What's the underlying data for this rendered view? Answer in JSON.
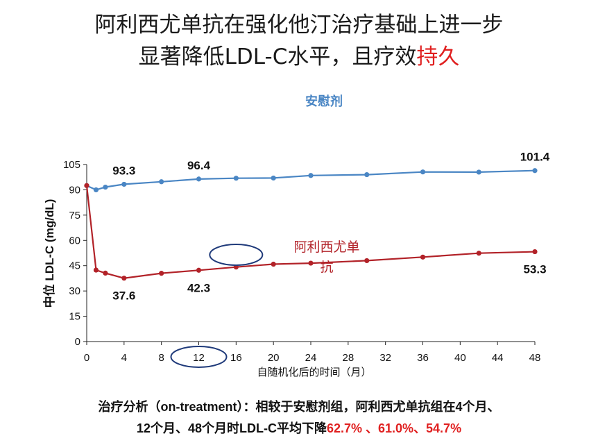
{
  "slide": {
    "title_line1": "阿利西尤单抗在强化他汀治疗基础上进一步",
    "title_line2_main": "显著降低LDL-C水平，且疗效",
    "title_line2_accent": "持久",
    "footer_line1": "治疗分析（on-treatment）：相较于安慰剂组，阿利西尤单抗组在4个月、",
    "footer_line2_main": "12个月、48个月时LDL-C平均下降",
    "footer_line2_values": "62.7% 、61.0%、54.7%"
  },
  "colors": {
    "placebo": "#4a86c4",
    "alirocumab": "#b22228",
    "accent_red": "#e02020",
    "highlight_ellipse": "#1f3a7a",
    "axis": "#222222"
  },
  "chart_data": {
    "type": "line",
    "xlabel": "自随机化后的时间（月）",
    "ylabel": "中位 LDL-C (mg/dL)",
    "xlim": [
      0,
      48
    ],
    "ylim": [
      0,
      105
    ],
    "xticks": [
      0,
      4,
      8,
      12,
      16,
      20,
      24,
      28,
      32,
      36,
      40,
      44,
      48
    ],
    "yticks": [
      0,
      15,
      30,
      45,
      60,
      75,
      90,
      105
    ],
    "grid": false,
    "series": [
      {
        "name": "安慰剂",
        "color_key": "placebo",
        "x": [
          0,
          1,
          2,
          4,
          8,
          12,
          16,
          20,
          24,
          30,
          36,
          42,
          48
        ],
        "y": [
          92.5,
          90.0,
          91.6,
          93.3,
          94.8,
          96.4,
          96.9,
          97.0,
          98.5,
          99.0,
          100.6,
          100.5,
          101.4
        ]
      },
      {
        "name": "阿利西尤单抗",
        "color_key": "alirocumab",
        "x": [
          0,
          1,
          2,
          4,
          8,
          12,
          16,
          20,
          24,
          30,
          36,
          42,
          48
        ],
        "y": [
          92.5,
          42.4,
          40.6,
          37.6,
          40.5,
          42.3,
          44.2,
          45.9,
          46.5,
          48.0,
          50.1,
          52.4,
          53.3
        ]
      }
    ],
    "data_labels": [
      {
        "text": "93.3",
        "x": 4,
        "y": 93.3,
        "series": 0,
        "pos": "above"
      },
      {
        "text": "96.4",
        "x": 12,
        "y": 96.4,
        "series": 0,
        "pos": "above"
      },
      {
        "text": "101.4",
        "x": 48,
        "y": 101.4,
        "series": 0,
        "pos": "above"
      },
      {
        "text": "37.6",
        "x": 4,
        "y": 37.6,
        "series": 1,
        "pos": "below"
      },
      {
        "text": "42.3",
        "x": 12,
        "y": 42.3,
        "series": 1,
        "pos": "below"
      },
      {
        "text": "53.3",
        "x": 48,
        "y": 53.3,
        "series": 1,
        "pos": "below"
      }
    ],
    "series_labels": [
      {
        "text": "安慰剂",
        "series": 0
      },
      {
        "text": "阿利西尤单抗",
        "series": 1
      }
    ]
  }
}
